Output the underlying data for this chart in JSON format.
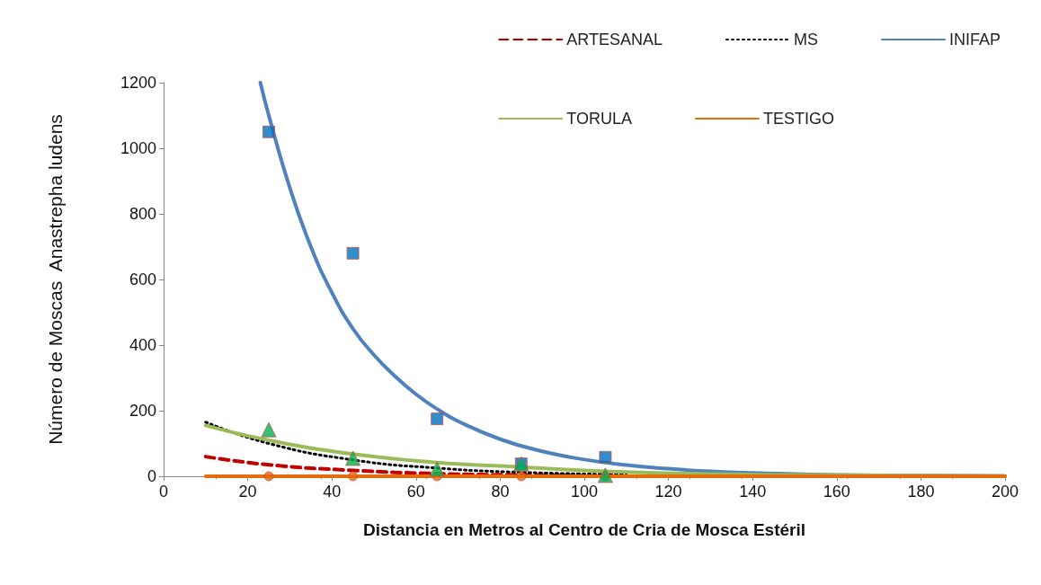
{
  "chart_data": {
    "type": "line",
    "xlabel": "Distancia en Metros al Centro de Cria de Mosca Estéril",
    "ylabel": "Número de Moscas  Anastrepha ludens",
    "xlim": [
      0,
      200
    ],
    "xticks": [
      0,
      20,
      40,
      60,
      80,
      100,
      120,
      140,
      160,
      180,
      200
    ],
    "ylim": [
      0,
      1200
    ],
    "yticks": [
      0,
      200,
      400,
      600,
      800,
      1000,
      1200
    ],
    "grid": false,
    "legend": "top right",
    "series": [
      {
        "name": "ARTESANAL",
        "color": "#c00000",
        "line_style": "dashed",
        "marker": "none",
        "x": [
          10,
          25,
          45,
          65,
          85,
          100
        ],
        "values": [
          60,
          35,
          18,
          8,
          4,
          2
        ]
      },
      {
        "name": "MS",
        "color": "#000000",
        "line_style": "dotted",
        "marker": "none",
        "x": [
          10,
          25,
          45,
          65,
          85,
          110
        ],
        "values": [
          165,
          100,
          50,
          25,
          12,
          5
        ]
      },
      {
        "name": "INIFAP",
        "color": "#4f81bd",
        "line_style": "solid",
        "marker": "none",
        "x": [
          23,
          25,
          30,
          35,
          40,
          45,
          50,
          55,
          60,
          65,
          70,
          80,
          90,
          100,
          110,
          120,
          130,
          140,
          150,
          160,
          180,
          200
        ],
        "values": [
          1200,
          1100,
          880,
          700,
          560,
          450,
          370,
          305,
          250,
          205,
          168,
          113,
          76,
          51,
          34,
          23,
          15,
          10,
          7,
          4,
          2,
          1
        ]
      },
      {
        "type": "scatter",
        "color": "#0070c0",
        "marker": "square",
        "x": [
          25,
          45,
          65,
          85,
          105
        ],
        "values": [
          1050,
          680,
          175,
          38,
          58
        ]
      },
      {
        "name": "TORULA",
        "color": "#9bbb59",
        "line_style": "solid",
        "marker": "none",
        "x": [
          10,
          25,
          45,
          65,
          85,
          105,
          125,
          150,
          200
        ],
        "values": [
          155,
          110,
          68,
          42,
          28,
          15,
          8,
          4,
          1
        ]
      },
      {
        "type": "scatter",
        "color": "#00b050",
        "marker": "triangle",
        "x": [
          25,
          45,
          65,
          85,
          105
        ],
        "values": [
          142,
          55,
          22,
          38,
          3
        ]
      },
      {
        "name": "TESTIGO",
        "color": "#e46c0a",
        "line_style": "solid",
        "marker": "none",
        "x": [
          10,
          200
        ],
        "values": [
          0,
          0
        ]
      },
      {
        "type": "scatter",
        "color": "#e46c0a",
        "marker": "circle",
        "x": [
          25,
          45,
          65,
          85,
          105
        ],
        "values": [
          0,
          0,
          0,
          0,
          0
        ]
      }
    ]
  }
}
